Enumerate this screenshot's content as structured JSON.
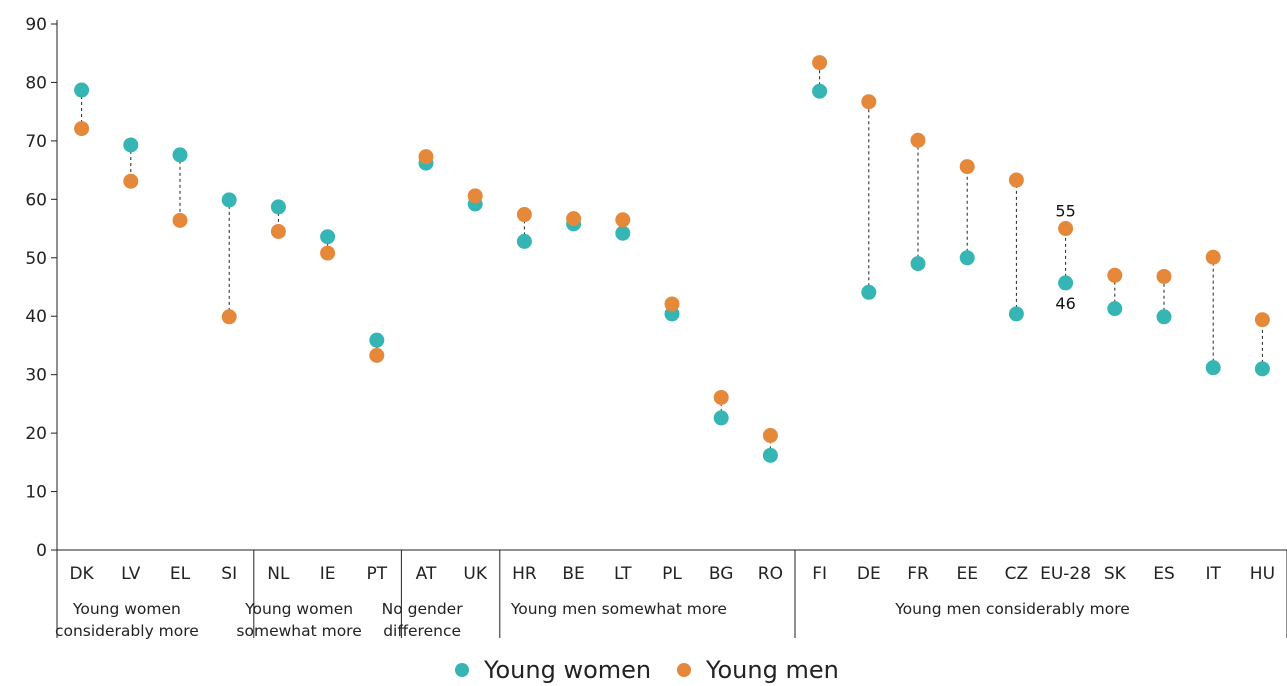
{
  "chart_data": {
    "type": "scatter",
    "ylim": [
      0,
      90
    ],
    "yticks": [
      "0",
      "10",
      "20",
      "30",
      "40",
      "50",
      "60",
      "70",
      "80",
      "90"
    ],
    "categories": [
      "DK",
      "LV",
      "EL",
      "SI",
      "NL",
      "IE",
      "PT",
      "AT",
      "UK",
      "HR",
      "BE",
      "LT",
      "PL",
      "BG",
      "RO",
      "FI",
      "DE",
      "FR",
      "EE",
      "CZ",
      "EU-28",
      "SK",
      "ES",
      "IT",
      "HU"
    ],
    "series": [
      {
        "name": "Young women",
        "color": "#36b5b5",
        "values": [
          78.7,
          69.3,
          67.6,
          59.9,
          58.7,
          53.6,
          35.9,
          66.2,
          59.2,
          52.8,
          55.8,
          54.2,
          40.4,
          22.6,
          16.2,
          78.5,
          44.1,
          49.0,
          50.0,
          40.4,
          45.7,
          41.3,
          39.9,
          31.2,
          31.0
        ]
      },
      {
        "name": "Young men",
        "color": "#e5883a",
        "values": [
          72.1,
          63.1,
          56.4,
          39.9,
          54.5,
          50.8,
          33.3,
          67.3,
          60.6,
          57.4,
          56.7,
          56.5,
          42.1,
          26.1,
          19.6,
          83.4,
          76.7,
          70.1,
          65.6,
          63.3,
          55.0,
          47.0,
          46.8,
          50.1,
          39.4
        ]
      }
    ],
    "groups": [
      {
        "lines": [
          "Young women",
          "considerably more"
        ],
        "start": 0,
        "end": 3
      },
      {
        "lines": [
          "Young women",
          "somewhat more"
        ],
        "start": 4,
        "end": 6
      },
      {
        "lines": [
          "No gender",
          "difference"
        ],
        "start": 7,
        "end": 8
      },
      {
        "lines": [
          "Young men somewhat more"
        ],
        "start": 9,
        "end": 14
      },
      {
        "lines": [
          "Young men considerably more"
        ],
        "start": 15,
        "end": 24
      }
    ],
    "annotations": [
      {
        "category": "EU-28",
        "series": "Young men",
        "text": "55"
      },
      {
        "category": "EU-28",
        "series": "Young women",
        "text": "46"
      }
    ],
    "legend": {
      "position": "bottom-center",
      "entries": [
        "Young women",
        "Young men"
      ]
    },
    "grid": false
  }
}
